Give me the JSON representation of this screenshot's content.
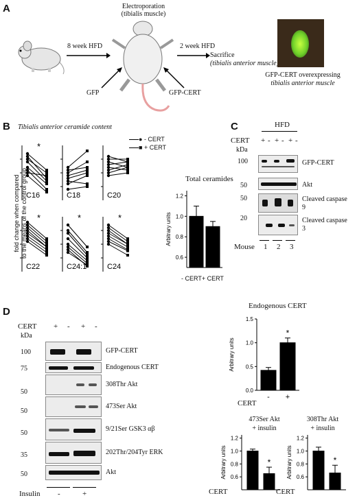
{
  "panel_a": {
    "label": "A",
    "electroporation": "Electroporation",
    "tibialis": "(tibialis muscle)",
    "hfd8": "8 week HFD",
    "hfd2": "2 week HFD",
    "sacrifice": "Sacrifice",
    "ta_muscle": "(tibialis anterior muscle)",
    "gfp": "GFP",
    "gfp_cert": "GFP-CERT",
    "caption1": "GFP-CERT overexpressing",
    "caption2": "tibialis anterior muscle"
  },
  "panel_b": {
    "label": "B",
    "title": "Tibialis anterior ceramide content",
    "legend_minus": "- CERT",
    "legend_plus": "+ CERT",
    "ylabel1": "fold change when compared",
    "ylabel2": "to the means of the control group",
    "plots": [
      {
        "name": "C16",
        "sig": "*"
      },
      {
        "name": "C18",
        "sig": ""
      },
      {
        "name": "C20",
        "sig": ""
      },
      {
        "name": "C22",
        "sig": "*"
      },
      {
        "name": "C24:1",
        "sig": "*"
      },
      {
        "name": "C24",
        "sig": "*"
      }
    ],
    "total_title": "Total ceramides",
    "total_ylabel": "Arbitrary units",
    "total_xlabel": "- CERT+ CERT"
  },
  "panel_c": {
    "label": "C",
    "hfd": "HFD",
    "cert": "CERT",
    "signs": [
      "+",
      "-",
      "+",
      "-",
      "+",
      "-"
    ],
    "kda": "kDa",
    "markers": [
      "100",
      "50",
      "50",
      "20"
    ],
    "bands": [
      "GFP-CERT",
      "Akt",
      "Cleaved caspase 9",
      "Cleaved caspase 3"
    ],
    "mouse": "Mouse",
    "mice": [
      "1",
      "2",
      "3"
    ]
  },
  "panel_d": {
    "label": "D",
    "cert": "CERT",
    "signs": [
      "+",
      "-",
      "+",
      "-"
    ],
    "kda": "kDa",
    "markers": [
      "100",
      "75",
      "50",
      "50",
      "50",
      "35",
      "50"
    ],
    "bands": [
      "GFP-CERT",
      "Endogenous CERT",
      "308Thr Akt",
      "473Ser Akt",
      "9/21Ser GSK3 αβ",
      "202Thr/204Tyr ERK",
      "Akt"
    ],
    "insulin": "Insulin",
    "insulin_signs": [
      "-",
      "+"
    ],
    "endo_title": "Endogenous CERT",
    "akt473_title1": "473Ser Akt",
    "akt473_title2": "+ insulin",
    "akt308_title1": "308Thr Akt",
    "akt308_title2": "+ insulin",
    "arb": "Arbitrary units",
    "cert_label": "CERT"
  },
  "chart_data": [
    {
      "type": "line",
      "title": "Tibialis anterior ceramide content",
      "ylabel": "fold change when compared to the means of the control group",
      "categories": [
        "- CERT",
        "+ CERT"
      ],
      "panels": [
        "C16",
        "C18",
        "C20",
        "C22",
        "C24:1",
        "C24"
      ]
    },
    {
      "type": "bar",
      "title": "Total ceramides",
      "ylabel": "Arbitrary units",
      "categories": [
        "- CERT",
        "+ CERT"
      ],
      "values": [
        1.0,
        0.9
      ],
      "errors": [
        0.1,
        0.05
      ],
      "ylim": [
        0.5,
        1.25
      ],
      "yticks": [
        0.6,
        0.8,
        1.0,
        1.2
      ]
    },
    {
      "type": "bar",
      "title": "Endogenous CERT",
      "ylabel": "Arbitrary units",
      "categories": [
        "-",
        "+"
      ],
      "values": [
        0.42,
        1.0
      ],
      "errors": [
        0.06,
        0.1
      ],
      "ylim": [
        0,
        1.5
      ],
      "yticks": [
        0.0,
        0.5,
        1.0,
        1.5
      ],
      "sig": [
        "",
        "*"
      ]
    },
    {
      "type": "bar",
      "title": "473Ser Akt + insulin",
      "ylabel": "Arbitrary units",
      "categories": [
        "+",
        "-"
      ],
      "values": [
        1.0,
        0.65
      ],
      "errors": [
        0.03,
        0.1
      ],
      "ylim": [
        0.4,
        1.25
      ],
      "yticks": [
        0.6,
        0.8,
        1.0,
        1.2
      ],
      "sig": [
        "",
        "*"
      ]
    },
    {
      "type": "bar",
      "title": "308Thr Akt + insulin",
      "ylabel": "Arbitrary units",
      "categories": [
        "+",
        "-"
      ],
      "values": [
        1.0,
        0.66
      ],
      "errors": [
        0.06,
        0.12
      ],
      "ylim": [
        0.4,
        1.25
      ],
      "yticks": [
        0.6,
        0.8,
        1.0,
        1.2
      ],
      "sig": [
        "",
        "*"
      ]
    }
  ]
}
